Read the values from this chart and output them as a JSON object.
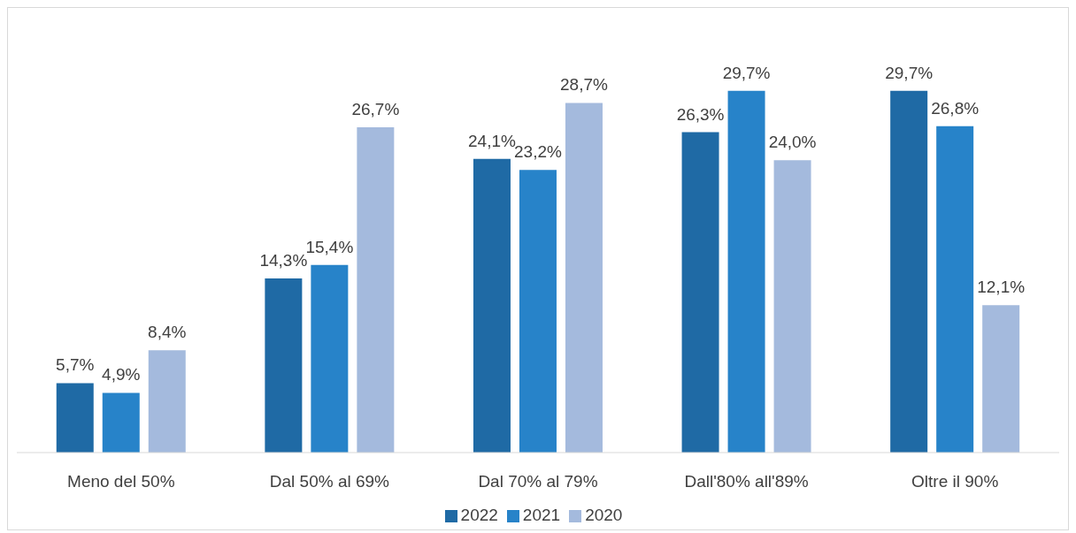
{
  "chart_data": {
    "type": "bar",
    "categories": [
      "Meno del 50%",
      "Dal 50% al 69%",
      "Dal 70% al 79%",
      "Dall'80% all'89%",
      "Oltre il 90%"
    ],
    "series": [
      {
        "name": "2022",
        "color": "#1f6aa5",
        "values": [
          5.7,
          14.3,
          24.1,
          26.3,
          29.7
        ],
        "value_labels": [
          "5,7%",
          "14,3%",
          "24,1%",
          "26,3%",
          "29,7%"
        ]
      },
      {
        "name": "2021",
        "color": "#2783c9",
        "values": [
          4.9,
          15.4,
          23.2,
          29.7,
          26.8
        ],
        "value_labels": [
          "4,9%",
          "15,4%",
          "23,2%",
          "29,7%",
          "26,8%"
        ]
      },
      {
        "name": "2020",
        "color": "#a4badd",
        "values": [
          8.4,
          26.7,
          28.7,
          24.0,
          12.1
        ],
        "value_labels": [
          "8,4%",
          "26,7%",
          "28,7%",
          "24,0%",
          "12,1%"
        ]
      }
    ],
    "legend": "bottom",
    "grid": false
  }
}
